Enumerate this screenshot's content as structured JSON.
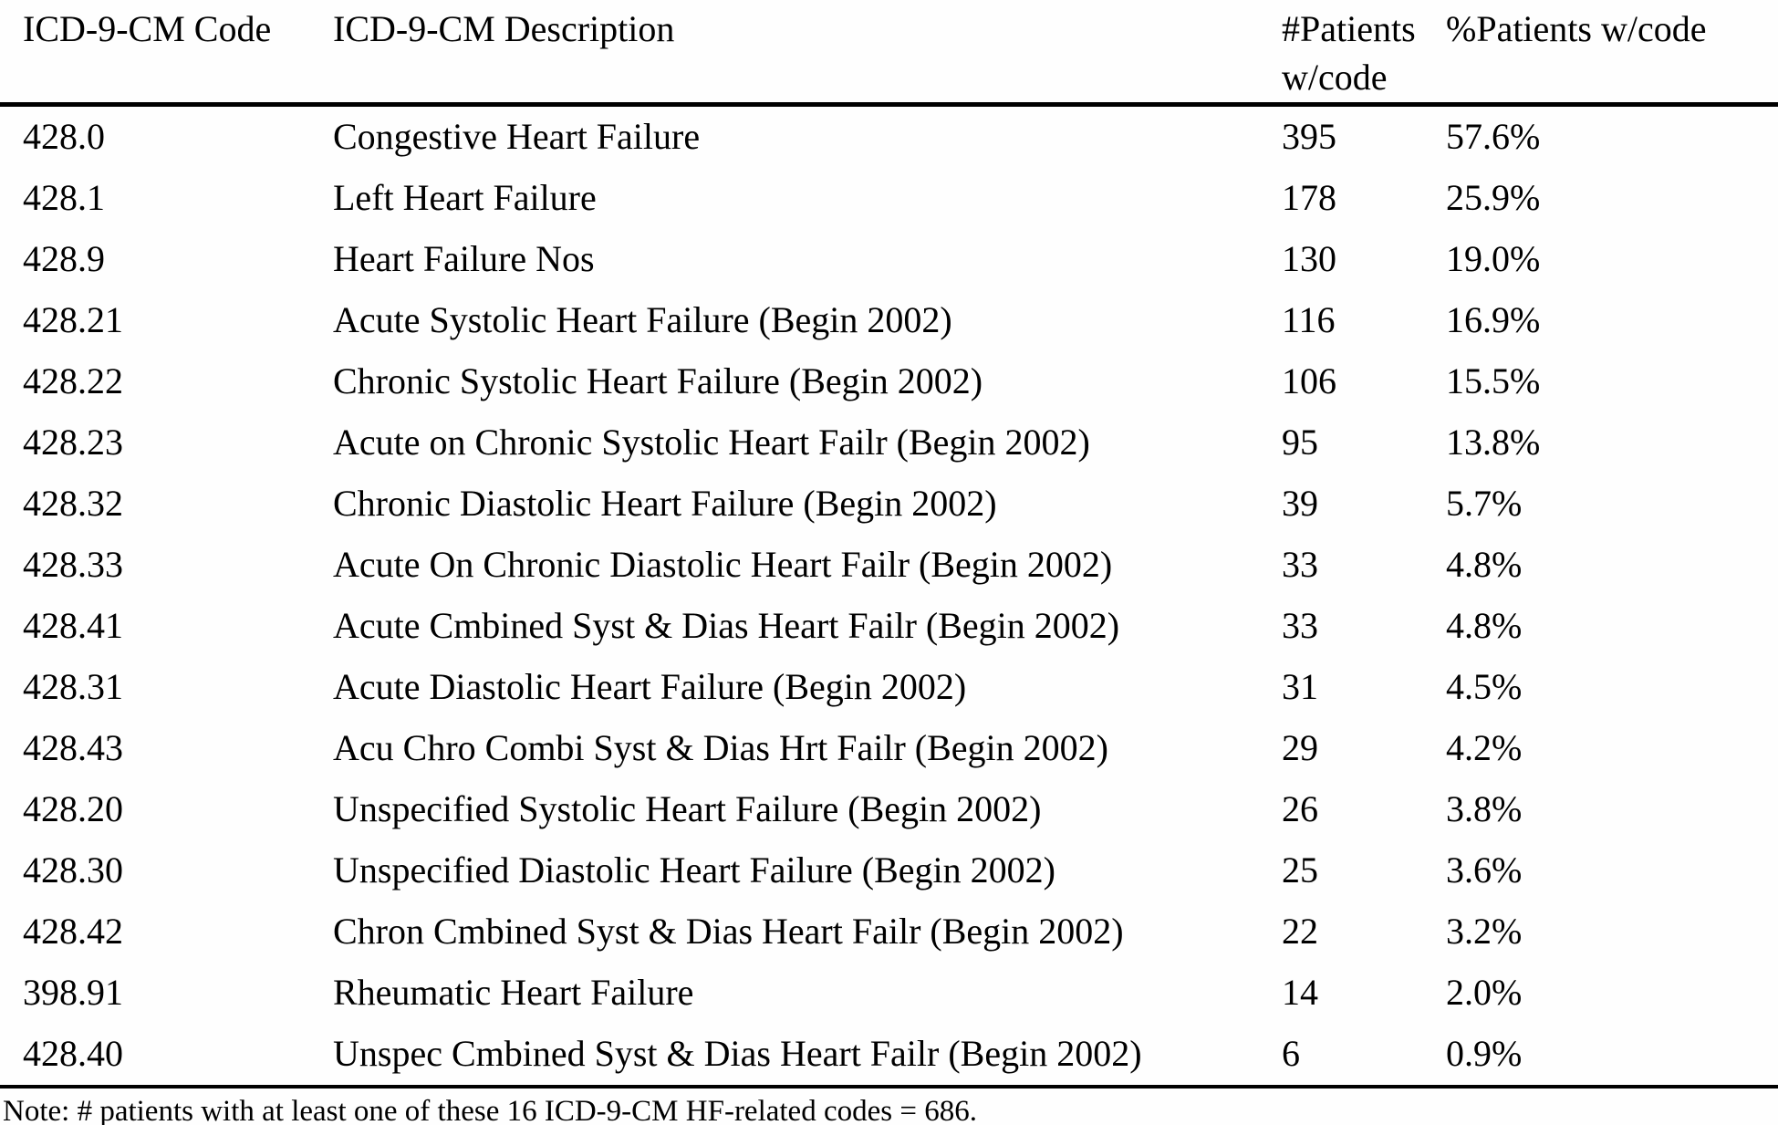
{
  "table": {
    "columns": [
      "ICD-9-CM Code",
      "ICD-9-CM Description",
      "#Patients w/code",
      "%Patients w/code"
    ],
    "rows": [
      {
        "code": "428.0",
        "description": "Congestive Heart Failure",
        "patients": "395",
        "percent": "57.6%"
      },
      {
        "code": "428.1",
        "description": "Left Heart Failure",
        "patients": "178",
        "percent": "25.9%"
      },
      {
        "code": "428.9",
        "description": "Heart Failure Nos",
        "patients": "130",
        "percent": "19.0%"
      },
      {
        "code": "428.21",
        "description": "Acute Systolic Heart Failure (Begin 2002)",
        "patients": "116",
        "percent": "16.9%"
      },
      {
        "code": "428.22",
        "description": "Chronic Systolic Heart Failure (Begin 2002)",
        "patients": "106",
        "percent": "15.5%"
      },
      {
        "code": "428.23",
        "description": "Acute on Chronic Systolic Heart Failr (Begin 2002)",
        "patients": "95",
        "percent": "13.8%"
      },
      {
        "code": "428.32",
        "description": "Chronic Diastolic Heart Failure (Begin 2002)",
        "patients": "39",
        "percent": "5.7%"
      },
      {
        "code": "428.33",
        "description": "Acute On Chronic Diastolic Heart Failr (Begin 2002)",
        "patients": "33",
        "percent": "4.8%"
      },
      {
        "code": "428.41",
        "description": "Acute Cmbined Syst & Dias Heart Failr (Begin 2002)",
        "patients": "33",
        "percent": "4.8%"
      },
      {
        "code": "428.31",
        "description": "Acute Diastolic Heart Failure (Begin 2002)",
        "patients": "31",
        "percent": "4.5%"
      },
      {
        "code": "428.43",
        "description": "Acu Chro Combi Syst & Dias Hrt Failr (Begin 2002)",
        "patients": "29",
        "percent": "4.2%"
      },
      {
        "code": "428.20",
        "description": "Unspecified Systolic Heart Failure (Begin 2002)",
        "patients": "26",
        "percent": "3.8%"
      },
      {
        "code": "428.30",
        "description": "Unspecified Diastolic Heart Failure (Begin 2002)",
        "patients": "25",
        "percent": "3.6%"
      },
      {
        "code": "428.42",
        "description": "Chron Cmbined Syst & Dias Heart Failr (Begin 2002)",
        "patients": "22",
        "percent": "3.2%"
      },
      {
        "code": "398.91",
        "description": "Rheumatic Heart Failure",
        "patients": "14",
        "percent": "2.0%"
      },
      {
        "code": "428.40",
        "description": "Unspec Cmbined Syst & Dias Heart Failr (Begin 2002)",
        "patients": "6",
        "percent": "0.9%"
      }
    ],
    "note": "Note: # patients with at least one of these 16 ICD-9-CM HF-related codes = 686."
  },
  "colors": {
    "text": "#000000",
    "background": "#fefefe",
    "rule": "#000000"
  }
}
